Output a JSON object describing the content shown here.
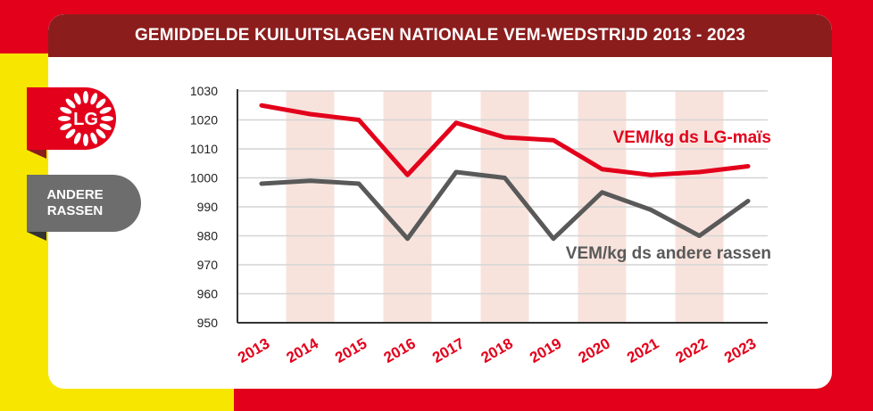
{
  "title": "GEMIDDELDE KUILUITSLAGEN NATIONALE VEM-WEDSTRIJD 2013 - 2023",
  "logo": {
    "text": "LG",
    "icon": "lg-sunflower-logo"
  },
  "side_label": {
    "line1": "ANDERE",
    "line2": "RASSEN"
  },
  "colors": {
    "lg": "#e3001b",
    "other": "#595959",
    "band": "#f8e3dc",
    "title_bg": "#8c1d1d",
    "yellow": "#f7e600"
  },
  "chart_data": {
    "type": "line",
    "categories": [
      "2013",
      "2014",
      "2015",
      "2016",
      "2017",
      "2018",
      "2019",
      "2020",
      "2021",
      "2022",
      "2023"
    ],
    "series": [
      {
        "name": "VEM/kg ds LG-maïs",
        "values": [
          1025,
          1022,
          1020,
          1001,
          1019,
          1014,
          1013,
          1003,
          1001,
          1002,
          1004
        ]
      },
      {
        "name": "VEM/kg ds andere rassen",
        "values": [
          998,
          999,
          998,
          979,
          1002,
          1000,
          979,
          995,
          989,
          980,
          992
        ]
      }
    ],
    "ylim": [
      950,
      1030
    ],
    "yticks": [
      1030,
      1020,
      1010,
      1000,
      990,
      980,
      970,
      960,
      950
    ],
    "grid": true,
    "xlabel": "",
    "ylabel": ""
  }
}
